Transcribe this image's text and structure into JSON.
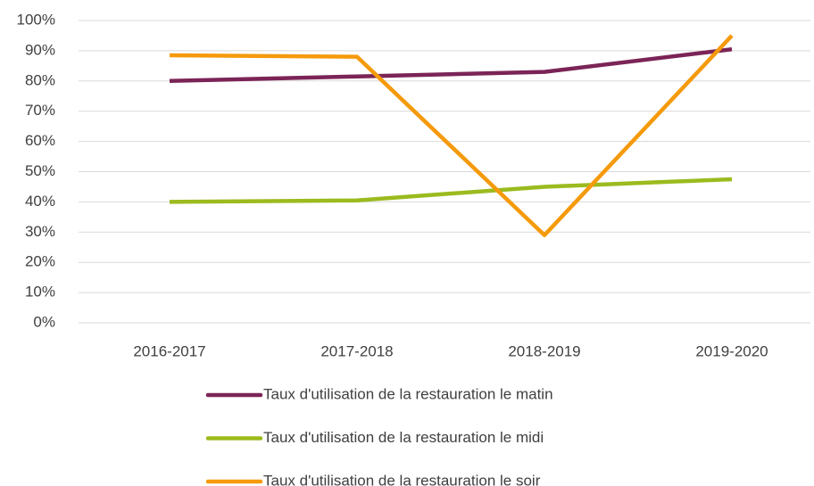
{
  "chart_data": {
    "type": "line",
    "categories": [
      "2016-2017",
      "2017-2018",
      "2018-2019",
      "2019-2020"
    ],
    "series": [
      {
        "name": "Taux d'utilisation de la restauration le matin",
        "color": "#7b2457",
        "values": [
          80,
          81.5,
          83,
          90.5
        ]
      },
      {
        "name": "Taux d'utilisation de la restauration le midi",
        "color": "#9bbb1e",
        "values": [
          40,
          40.5,
          45,
          47.5
        ]
      },
      {
        "name": "Taux d'utilisation de la restauration le soir",
        "color": "#f59a0c",
        "values": [
          88.5,
          88,
          29,
          95
        ]
      }
    ],
    "ylim": [
      0,
      100
    ],
    "yticks": [
      {
        "value": 0,
        "label": "0%"
      },
      {
        "value": 10,
        "label": "10%"
      },
      {
        "value": 20,
        "label": "20%"
      },
      {
        "value": 30,
        "label": "30%"
      },
      {
        "value": 40,
        "label": "40%"
      },
      {
        "value": 50,
        "label": "50%"
      },
      {
        "value": 60,
        "label": "60%"
      },
      {
        "value": 70,
        "label": "70%"
      },
      {
        "value": 80,
        "label": "80%"
      },
      {
        "value": 90,
        "label": "90%"
      },
      {
        "value": 100,
        "label": "100%"
      }
    ],
    "grid": true,
    "legend": "bottom"
  }
}
